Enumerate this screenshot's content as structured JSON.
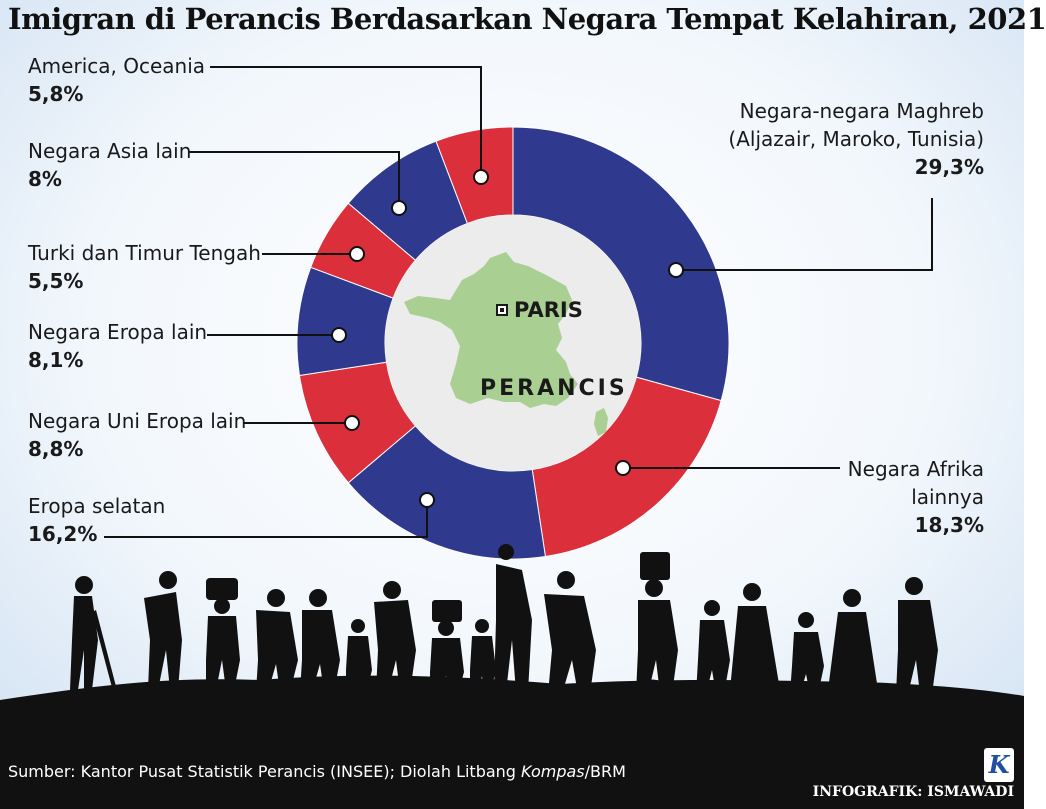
{
  "title": "Imigran di Perancis Berdasarkan Negara Tempat Kelahiran, 2021",
  "map": {
    "capital_label": "PARIS",
    "country_label": "PERANCIS"
  },
  "colors": {
    "blue": "#2f3a8f",
    "red": "#dc2f3c",
    "inner": "#ececec",
    "map": "#a9cf92",
    "ground": "#111111"
  },
  "chart_data": {
    "type": "pie",
    "title": "Imigran di Perancis Berdasarkan Negara Tempat Kelahiran, 2021",
    "slices": [
      {
        "label": "Negara-negara Maghreb (Aljazair, Maroko, Tunisia)",
        "value": 29.3,
        "display": "29,3%",
        "color": "#2f3a8f"
      },
      {
        "label": "Negara Afrika lainnya",
        "value": 18.3,
        "display": "18,3%",
        "color": "#dc2f3c"
      },
      {
        "label": "Eropa selatan",
        "value": 16.2,
        "display": "16,2%",
        "color": "#2f3a8f"
      },
      {
        "label": "Negara Uni Eropa lain",
        "value": 8.8,
        "display": "8,8%",
        "color": "#dc2f3c"
      },
      {
        "label": "Negara Eropa lain",
        "value": 8.1,
        "display": "8,1%",
        "color": "#2f3a8f"
      },
      {
        "label": "Turki dan Timur Tengah",
        "value": 5.5,
        "display": "5,5%",
        "color": "#dc2f3c"
      },
      {
        "label": "Negara Asia lain",
        "value": 8.0,
        "display": "8%",
        "color": "#2f3a8f"
      },
      {
        "label": "America, Oceania",
        "value": 5.8,
        "display": "5,8%",
        "color": "#dc2f3c"
      }
    ]
  },
  "labels": {
    "maghreb": {
      "line1": "Negara-negara Maghreb",
      "line2": "(Aljazair, Maroko, Tunisia)",
      "value": "29,3%"
    },
    "afrika": {
      "line1": "Negara Afrika",
      "line2": "lainnya",
      "value": "18,3%"
    },
    "eropa_selatan": {
      "name": "Eropa selatan",
      "value": "16,2%"
    },
    "uni_eropa": {
      "name": "Negara Uni Eropa lain",
      "value": "8,8%"
    },
    "eropa_lain": {
      "name": "Negara Eropa lain",
      "value": "8,1%"
    },
    "turki": {
      "name": "Turki dan Timur Tengah",
      "value": "5,5%"
    },
    "asia": {
      "name": "Negara Asia lain",
      "value": "8%"
    },
    "america": {
      "name": "America, Oceania",
      "value": "5,8%"
    }
  },
  "footer": {
    "source_prefix": "Sumber: Kantor Pusat Statistik Perancis (INSEE); Diolah Litbang ",
    "source_italic": "Kompas",
    "source_suffix": "/BRM",
    "credit": "INFOGRAFIK: ISMAWADI",
    "logo_letter": "K"
  }
}
